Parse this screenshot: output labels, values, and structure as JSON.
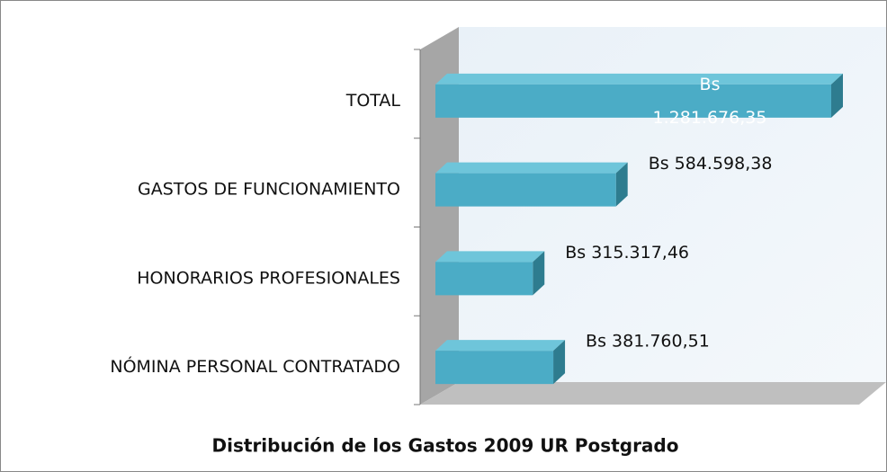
{
  "chart_data": {
    "type": "bar",
    "orientation": "horizontal",
    "title": "Distribución de los Gastos 2009 UR Postgrado",
    "categories": [
      "TOTAL",
      "GASTOS DE FUNCIONAMIENTO",
      "HONORARIOS PROFESIONALES",
      "NÓMINA PERSONAL CONTRATADO"
    ],
    "values": [
      1281676.35,
      584598.38,
      315317.46,
      381760.51
    ],
    "value_labels": [
      "Bs 1.281.676,35",
      "Bs 584.598,38",
      "Bs 315.317,46",
      "Bs 381.760,51"
    ],
    "color": "#4bacc6"
  }
}
